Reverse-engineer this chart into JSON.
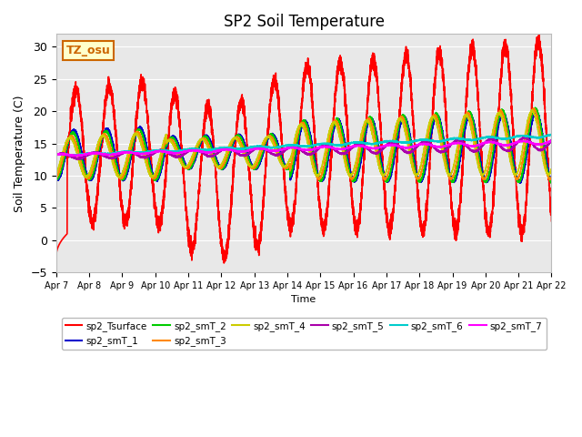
{
  "title": "SP2 Soil Temperature",
  "xlabel": "Time",
  "ylabel": "Soil Temperature (C)",
  "ylim": [
    -5,
    32
  ],
  "xlim": [
    0,
    360
  ],
  "fig_bg_color": "#ffffff",
  "plot_bg_color": "#e8e8e8",
  "annotation_text": "TZ_osu",
  "annotation_bg": "#ffffcc",
  "annotation_border": "#cc6600",
  "x_tick_labels": [
    "Apr 7",
    "Apr 8",
    "Apr 9",
    "Apr 10",
    "Apr 11",
    "Apr 12",
    "Apr 13",
    "Apr 14",
    "Apr 15",
    "Apr 16",
    "Apr 17",
    "Apr 18",
    "Apr 19",
    "Apr 20",
    "Apr 21",
    "Apr 22"
  ],
  "x_tick_positions": [
    0,
    24,
    48,
    72,
    96,
    120,
    144,
    168,
    192,
    216,
    240,
    264,
    288,
    312,
    336,
    360
  ],
  "yticks": [
    -5,
    0,
    5,
    10,
    15,
    20,
    25,
    30
  ],
  "legend": [
    {
      "label": "sp2_Tsurface",
      "color": "#ff0000"
    },
    {
      "label": "sp2_smT_1",
      "color": "#0000cc"
    },
    {
      "label": "sp2_smT_2",
      "color": "#00cc00"
    },
    {
      "label": "sp2_smT_3",
      "color": "#ff8800"
    },
    {
      "label": "sp2_smT_4",
      "color": "#cccc00"
    },
    {
      "label": "sp2_smT_5",
      "color": "#aa00aa"
    },
    {
      "label": "sp2_smT_6",
      "color": "#00cccc"
    },
    {
      "label": "sp2_smT_7",
      "color": "#ff00ff"
    }
  ]
}
